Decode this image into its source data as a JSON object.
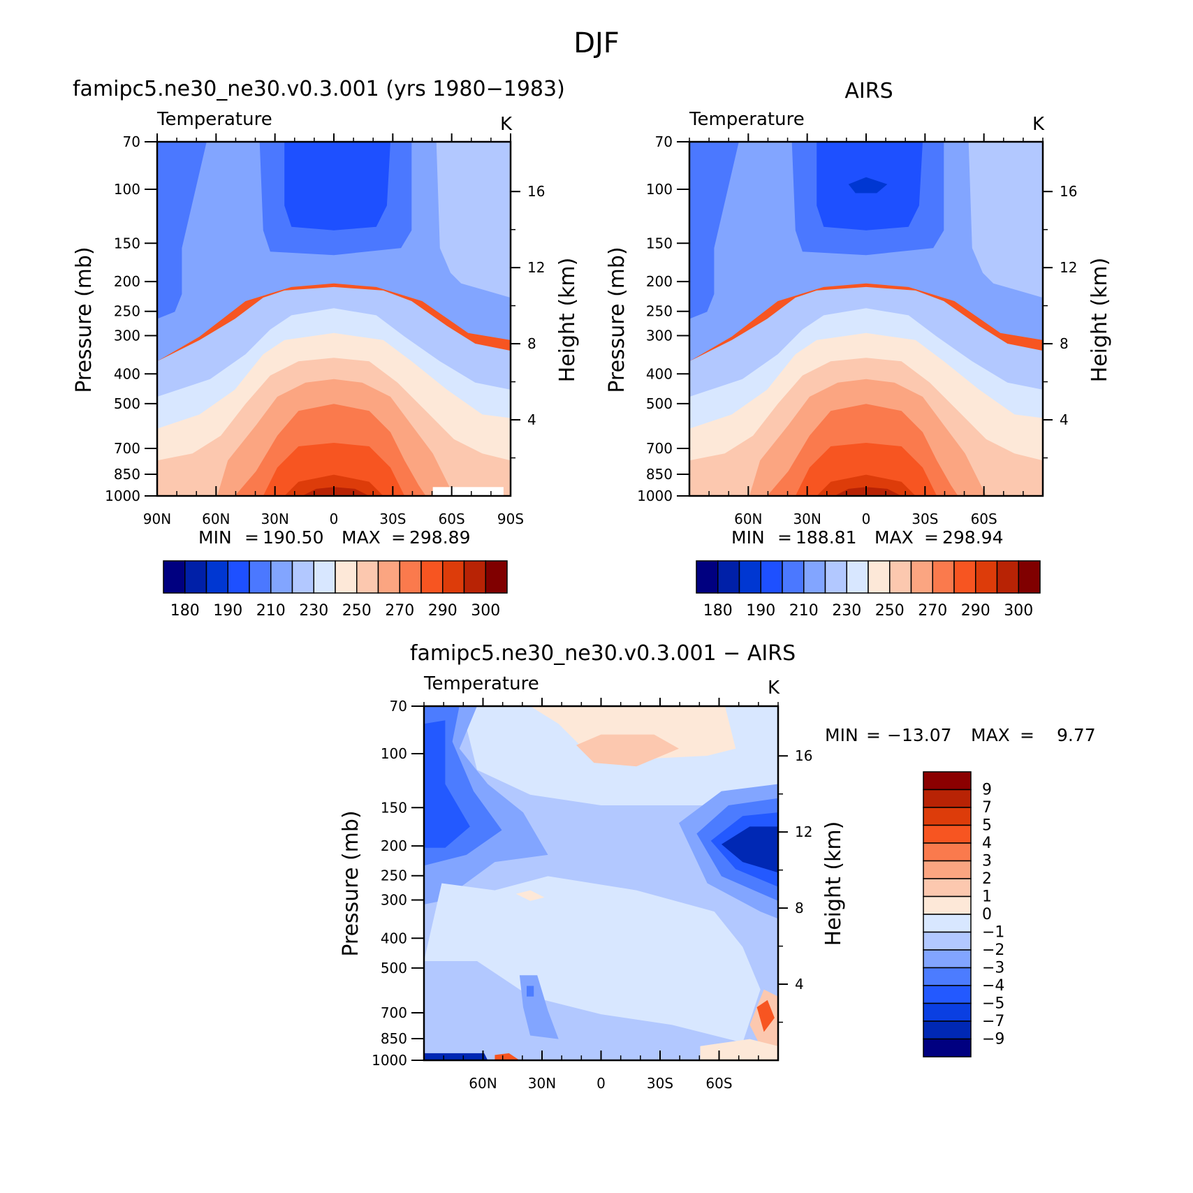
{
  "figure": {
    "title": "DJF"
  },
  "cmap_abs": [
    "#000080",
    "#0020a8",
    "#0037d2",
    "#1e50ff",
    "#4b78ff",
    "#82a5ff",
    "#b2c8ff",
    "#d8e7ff",
    "#fde8d8",
    "#fcc8af",
    "#fba581",
    "#fa7a4d",
    "#f75521",
    "#dd3c0a",
    "#b82305",
    "#800000"
  ],
  "cmap_diff": [
    "#000080",
    "#0028b4",
    "#0a3fe2",
    "#2359ff",
    "#4c7cff",
    "#82a5ff",
    "#b2c8ff",
    "#d8e7ff",
    "#fde8d8",
    "#fcc8af",
    "#fba581",
    "#fa7a4d",
    "#f75521",
    "#dd3c0a",
    "#b82305",
    "#8b0000"
  ],
  "chart_data": [
    {
      "type": "heatmap",
      "title": "famipc5.ne30_ne30.v0.3.001 (yrs 1980−1983)",
      "subtitle_left": "Temperature",
      "subtitle_right": "K",
      "ylabel": "Pressure (mb)",
      "y2label": "Height (km)",
      "x_ticks": [
        "90N",
        "60N",
        "30N",
        "0",
        "30S",
        "60S",
        "90S"
      ],
      "x_range": [
        90,
        -90
      ],
      "y_ticks": [
        "70",
        "100",
        "150",
        "200",
        "250",
        "300",
        "400",
        "500",
        "700",
        "850",
        "1000"
      ],
      "y_range": [
        70,
        1000
      ],
      "y2_ticks": [
        "16",
        "12",
        "8",
        "4"
      ],
      "min_label": "MIN",
      "max_label": "MAX",
      "min_value": "190.50",
      "max_value": "298.89",
      "colorbar_labels": [
        "180",
        "190",
        "210",
        "230",
        "250",
        "270",
        "290",
        "300"
      ],
      "levels": [
        175,
        180,
        185,
        190,
        200,
        210,
        220,
        230,
        240,
        250,
        260,
        270,
        280,
        290,
        295,
        300
      ]
    },
    {
      "type": "heatmap",
      "title": "AIRS",
      "subtitle_left": "Temperature",
      "subtitle_right": "K",
      "ylabel": "Pressure (mb)",
      "y2label": "Height (km)",
      "x_ticks": [
        "60N",
        "30N",
        "0",
        "30S",
        "60S"
      ],
      "x_range": [
        90,
        -90
      ],
      "y_ticks": [
        "70",
        "100",
        "150",
        "200",
        "250",
        "300",
        "400",
        "500",
        "700",
        "850",
        "1000"
      ],
      "y_range": [
        70,
        1000
      ],
      "y2_ticks": [
        "16",
        "12",
        "8",
        "4"
      ],
      "min_label": "MIN",
      "max_label": "MAX",
      "min_value": "188.81",
      "max_value": "298.94",
      "colorbar_labels": [
        "180",
        "190",
        "210",
        "230",
        "250",
        "270",
        "290",
        "300"
      ],
      "levels": [
        175,
        180,
        185,
        190,
        200,
        210,
        220,
        230,
        240,
        250,
        260,
        270,
        280,
        290,
        295,
        300
      ]
    },
    {
      "type": "heatmap",
      "title": "famipc5.ne30_ne30.v0.3.001 − AIRS",
      "subtitle_left": "Temperature",
      "subtitle_right": "K",
      "ylabel": "Pressure (mb)",
      "y2label": "Height (km)",
      "x_ticks": [
        "60N",
        "30N",
        "0",
        "30S",
        "60S"
      ],
      "x_range": [
        90,
        -90
      ],
      "y_ticks": [
        "70",
        "100",
        "150",
        "200",
        "250",
        "300",
        "400",
        "500",
        "700",
        "850",
        "1000"
      ],
      "y_range": [
        70,
        1000
      ],
      "y2_ticks": [
        "16",
        "12",
        "8",
        "4"
      ],
      "min_label": "MIN",
      "max_label": "MAX",
      "min_value": "−13.07",
      "max_value": "9.77",
      "colorbar_labels": [
        "9",
        "7",
        "5",
        "4",
        "3",
        "2",
        "1",
        "0",
        "−1",
        "−2",
        "−3",
        "−4",
        "−5",
        "−7",
        "−9"
      ],
      "levels": [
        -11,
        -9,
        -7,
        -5,
        -4,
        -3,
        -2,
        -1,
        0,
        1,
        2,
        3,
        4,
        5,
        7,
        9
      ]
    }
  ]
}
